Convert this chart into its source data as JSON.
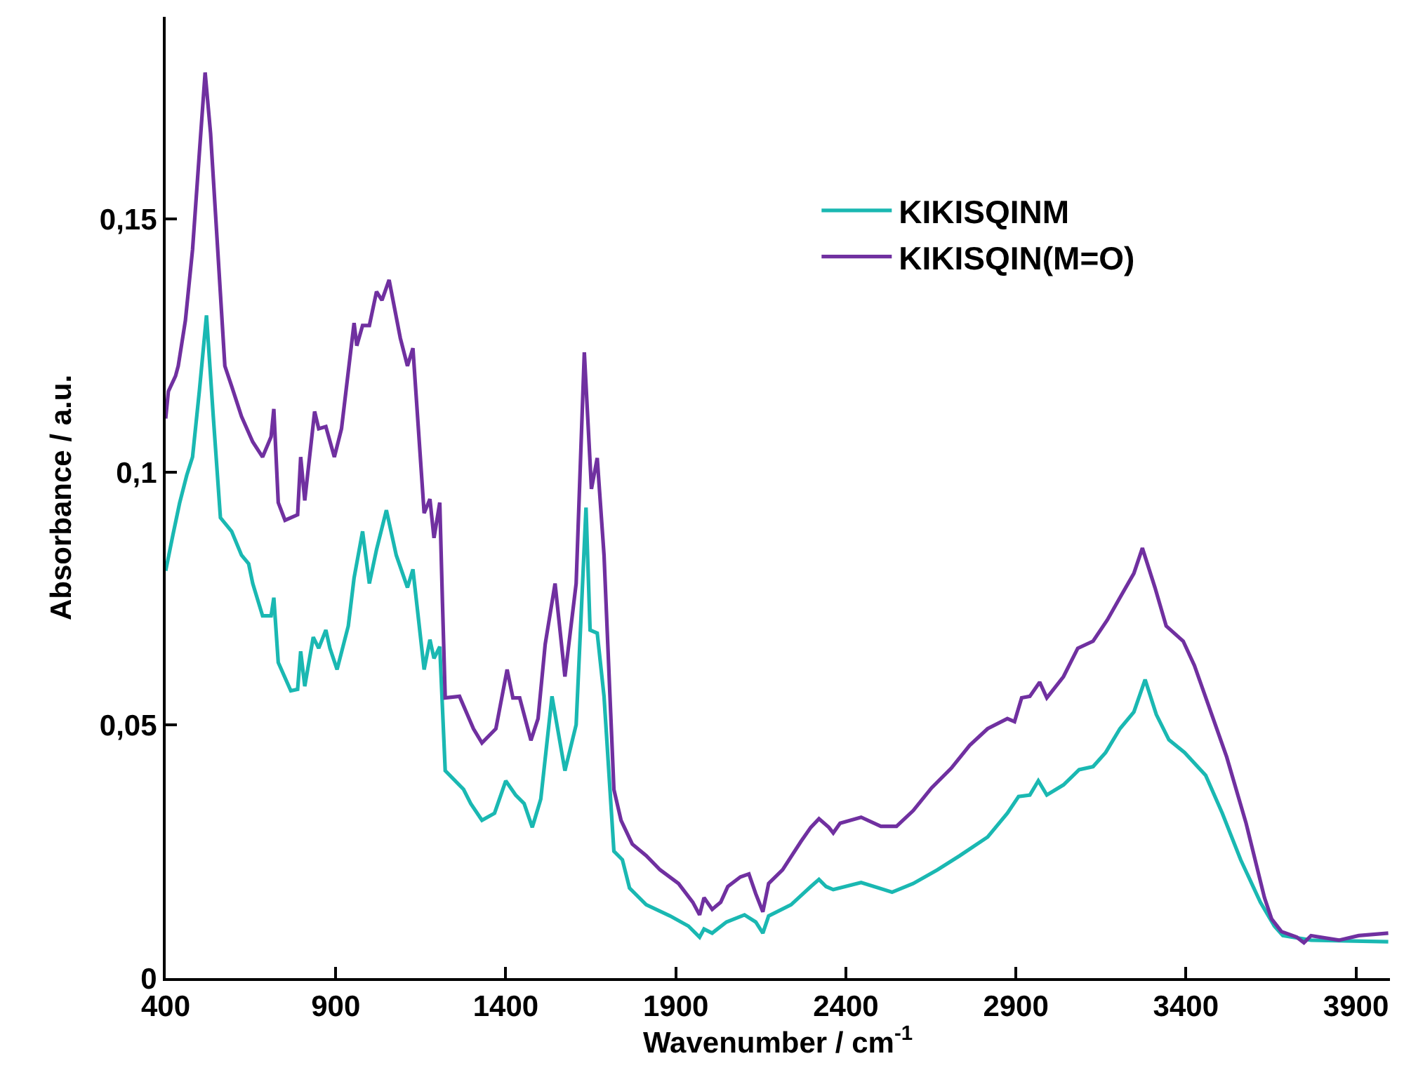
{
  "chart_data": {
    "type": "line",
    "xlabel": "Wavenumber / cm$^{-1}$",
    "ylabel": "Absorbance / a.u.",
    "xlim": [
      400,
      4000
    ],
    "xticks": [
      400,
      900,
      1400,
      1900,
      2400,
      2900,
      3400,
      3900
    ],
    "ylim": [
      0,
      0.19
    ],
    "yticks": [
      {
        "value": 0,
        "label": "0"
      },
      {
        "value": 0.05,
        "label": "0,05"
      },
      {
        "value": 0.1,
        "label": "0,1"
      },
      {
        "value": 0.15,
        "label": "0,15"
      }
    ],
    "grid": false,
    "legend": "top right",
    "marker": "none",
    "line_style": "solid",
    "series": [
      {
        "name": "KIKISQINM",
        "color": "#1ab8b2",
        "x": [
          400,
          421,
          441,
          462,
          479,
          499,
          520,
          540,
          561,
          594,
          623,
          644,
          656,
          685,
          710,
          718,
          731,
          768,
          788,
          797,
          809,
          834,
          850,
          871,
          883,
          904,
          937,
          954,
          979,
          999,
          1020,
          1049,
          1078,
          1111,
          1127,
          1160,
          1177,
          1189,
          1206,
          1222,
          1276,
          1297,
          1330,
          1367,
          1400,
          1429,
          1454,
          1478,
          1503,
          1536,
          1574,
          1607,
          1636,
          1648,
          1669,
          1689,
          1718,
          1743,
          1764,
          1813,
          1883,
          1937,
          1970,
          1983,
          2007,
          2049,
          2102,
          2135,
          2156,
          2173,
          2239,
          2297,
          2321,
          2342,
          2363,
          2445,
          2536,
          2598,
          2669,
          2735,
          2817,
          2875,
          2908,
          2941,
          2966,
          2991,
          3040,
          3086,
          3127,
          3164,
          3206,
          3247,
          3280,
          3313,
          3350,
          3396,
          3458,
          3507,
          3561,
          3619,
          3660,
          3685,
          3768,
          3995
        ],
        "values": [
          0.0805,
          0.0875,
          0.0939,
          0.0994,
          0.103,
          0.116,
          0.131,
          0.111,
          0.091,
          0.0883,
          0.0836,
          0.0819,
          0.078,
          0.0716,
          0.0716,
          0.0752,
          0.0624,
          0.0568,
          0.0571,
          0.0646,
          0.0577,
          0.0674,
          0.0652,
          0.0688,
          0.0652,
          0.061,
          0.0696,
          0.0791,
          0.0883,
          0.078,
          0.0847,
          0.0925,
          0.0836,
          0.0772,
          0.0808,
          0.061,
          0.0669,
          0.0632,
          0.0655,
          0.041,
          0.0373,
          0.0345,
          0.0312,
          0.0326,
          0.039,
          0.0362,
          0.0345,
          0.0298,
          0.0354,
          0.0557,
          0.041,
          0.0501,
          0.093,
          0.0688,
          0.0682,
          0.0557,
          0.0251,
          0.0234,
          0.0178,
          0.0145,
          0.0123,
          0.0103,
          0.0081,
          0.0097,
          0.0089,
          0.0111,
          0.0125,
          0.0111,
          0.0089,
          0.0123,
          0.0145,
          0.0181,
          0.0195,
          0.0181,
          0.0175,
          0.0189,
          0.017,
          0.0187,
          0.0214,
          0.0242,
          0.0279,
          0.0326,
          0.0359,
          0.0362,
          0.039,
          0.0362,
          0.0382,
          0.0412,
          0.0418,
          0.0446,
          0.0493,
          0.0526,
          0.059,
          0.0521,
          0.0471,
          0.0446,
          0.0401,
          0.0326,
          0.0234,
          0.015,
          0.0103,
          0.0084,
          0.0075,
          0.0072
        ]
      },
      {
        "name": "KIKISQIN(M=O)",
        "color": "#7030a0",
        "x": [
          400,
          408,
          429,
          437,
          458,
          479,
          499,
          516,
          532,
          553,
          574,
          594,
          623,
          656,
          685,
          710,
          718,
          731,
          751,
          788,
          797,
          809,
          838,
          850,
          871,
          896,
          917,
          954,
          962,
          979,
          999,
          1020,
          1036,
          1057,
          1090,
          1111,
          1127,
          1160,
          1177,
          1189,
          1206,
          1214,
          1222,
          1264,
          1305,
          1330,
          1371,
          1404,
          1421,
          1441,
          1474,
          1495,
          1516,
          1545,
          1574,
          1607,
          1631,
          1652,
          1669,
          1689,
          1718,
          1739,
          1772,
          1813,
          1854,
          1908,
          1950,
          1970,
          1983,
          2007,
          2032,
          2053,
          2090,
          2115,
          2135,
          2156,
          2173,
          2214,
          2268,
          2297,
          2321,
          2350,
          2363,
          2383,
          2445,
          2503,
          2549,
          2598,
          2652,
          2710,
          2764,
          2817,
          2875,
          2896,
          2917,
          2941,
          2970,
          2991,
          3040,
          3082,
          3127,
          3169,
          3206,
          3247,
          3272,
          3309,
          3342,
          3392,
          3425,
          3466,
          3520,
          3577,
          3631,
          3652,
          3681,
          3726,
          3747,
          3768,
          3850,
          3908,
          3995
        ],
        "values": [
          0.1106,
          0.116,
          0.119,
          0.121,
          0.13,
          0.144,
          0.163,
          0.179,
          0.167,
          0.144,
          0.121,
          0.117,
          0.111,
          0.106,
          0.103,
          0.107,
          0.1125,
          0.094,
          0.0905,
          0.0916,
          0.103,
          0.0944,
          0.112,
          0.1086,
          0.109,
          0.103,
          0.1086,
          0.1295,
          0.125,
          0.129,
          0.129,
          0.1357,
          0.134,
          0.138,
          0.1265,
          0.121,
          0.1245,
          0.0919,
          0.0947,
          0.087,
          0.094,
          0.074,
          0.0554,
          0.0557,
          0.0493,
          0.0465,
          0.0493,
          0.061,
          0.0554,
          0.0554,
          0.047,
          0.0513,
          0.066,
          0.078,
          0.0596,
          0.078,
          0.1237,
          0.0967,
          0.1028,
          0.0836,
          0.0373,
          0.0312,
          0.0265,
          0.0242,
          0.0214,
          0.0187,
          0.015,
          0.0125,
          0.0159,
          0.0136,
          0.015,
          0.0181,
          0.02,
          0.0206,
          0.0167,
          0.0131,
          0.0187,
          0.0214,
          0.027,
          0.0298,
          0.0315,
          0.0298,
          0.0287,
          0.0306,
          0.0318,
          0.03,
          0.03,
          0.0331,
          0.0376,
          0.0415,
          0.046,
          0.0493,
          0.0513,
          0.0507,
          0.0554,
          0.0557,
          0.0585,
          0.0554,
          0.0596,
          0.0652,
          0.0666,
          0.0708,
          0.0752,
          0.08,
          0.085,
          0.0772,
          0.0696,
          0.0666,
          0.0618,
          0.054,
          0.0437,
          0.0306,
          0.0159,
          0.0117,
          0.0092,
          0.0081,
          0.007,
          0.0084,
          0.0075,
          0.0084,
          0.0089
        ]
      }
    ]
  }
}
